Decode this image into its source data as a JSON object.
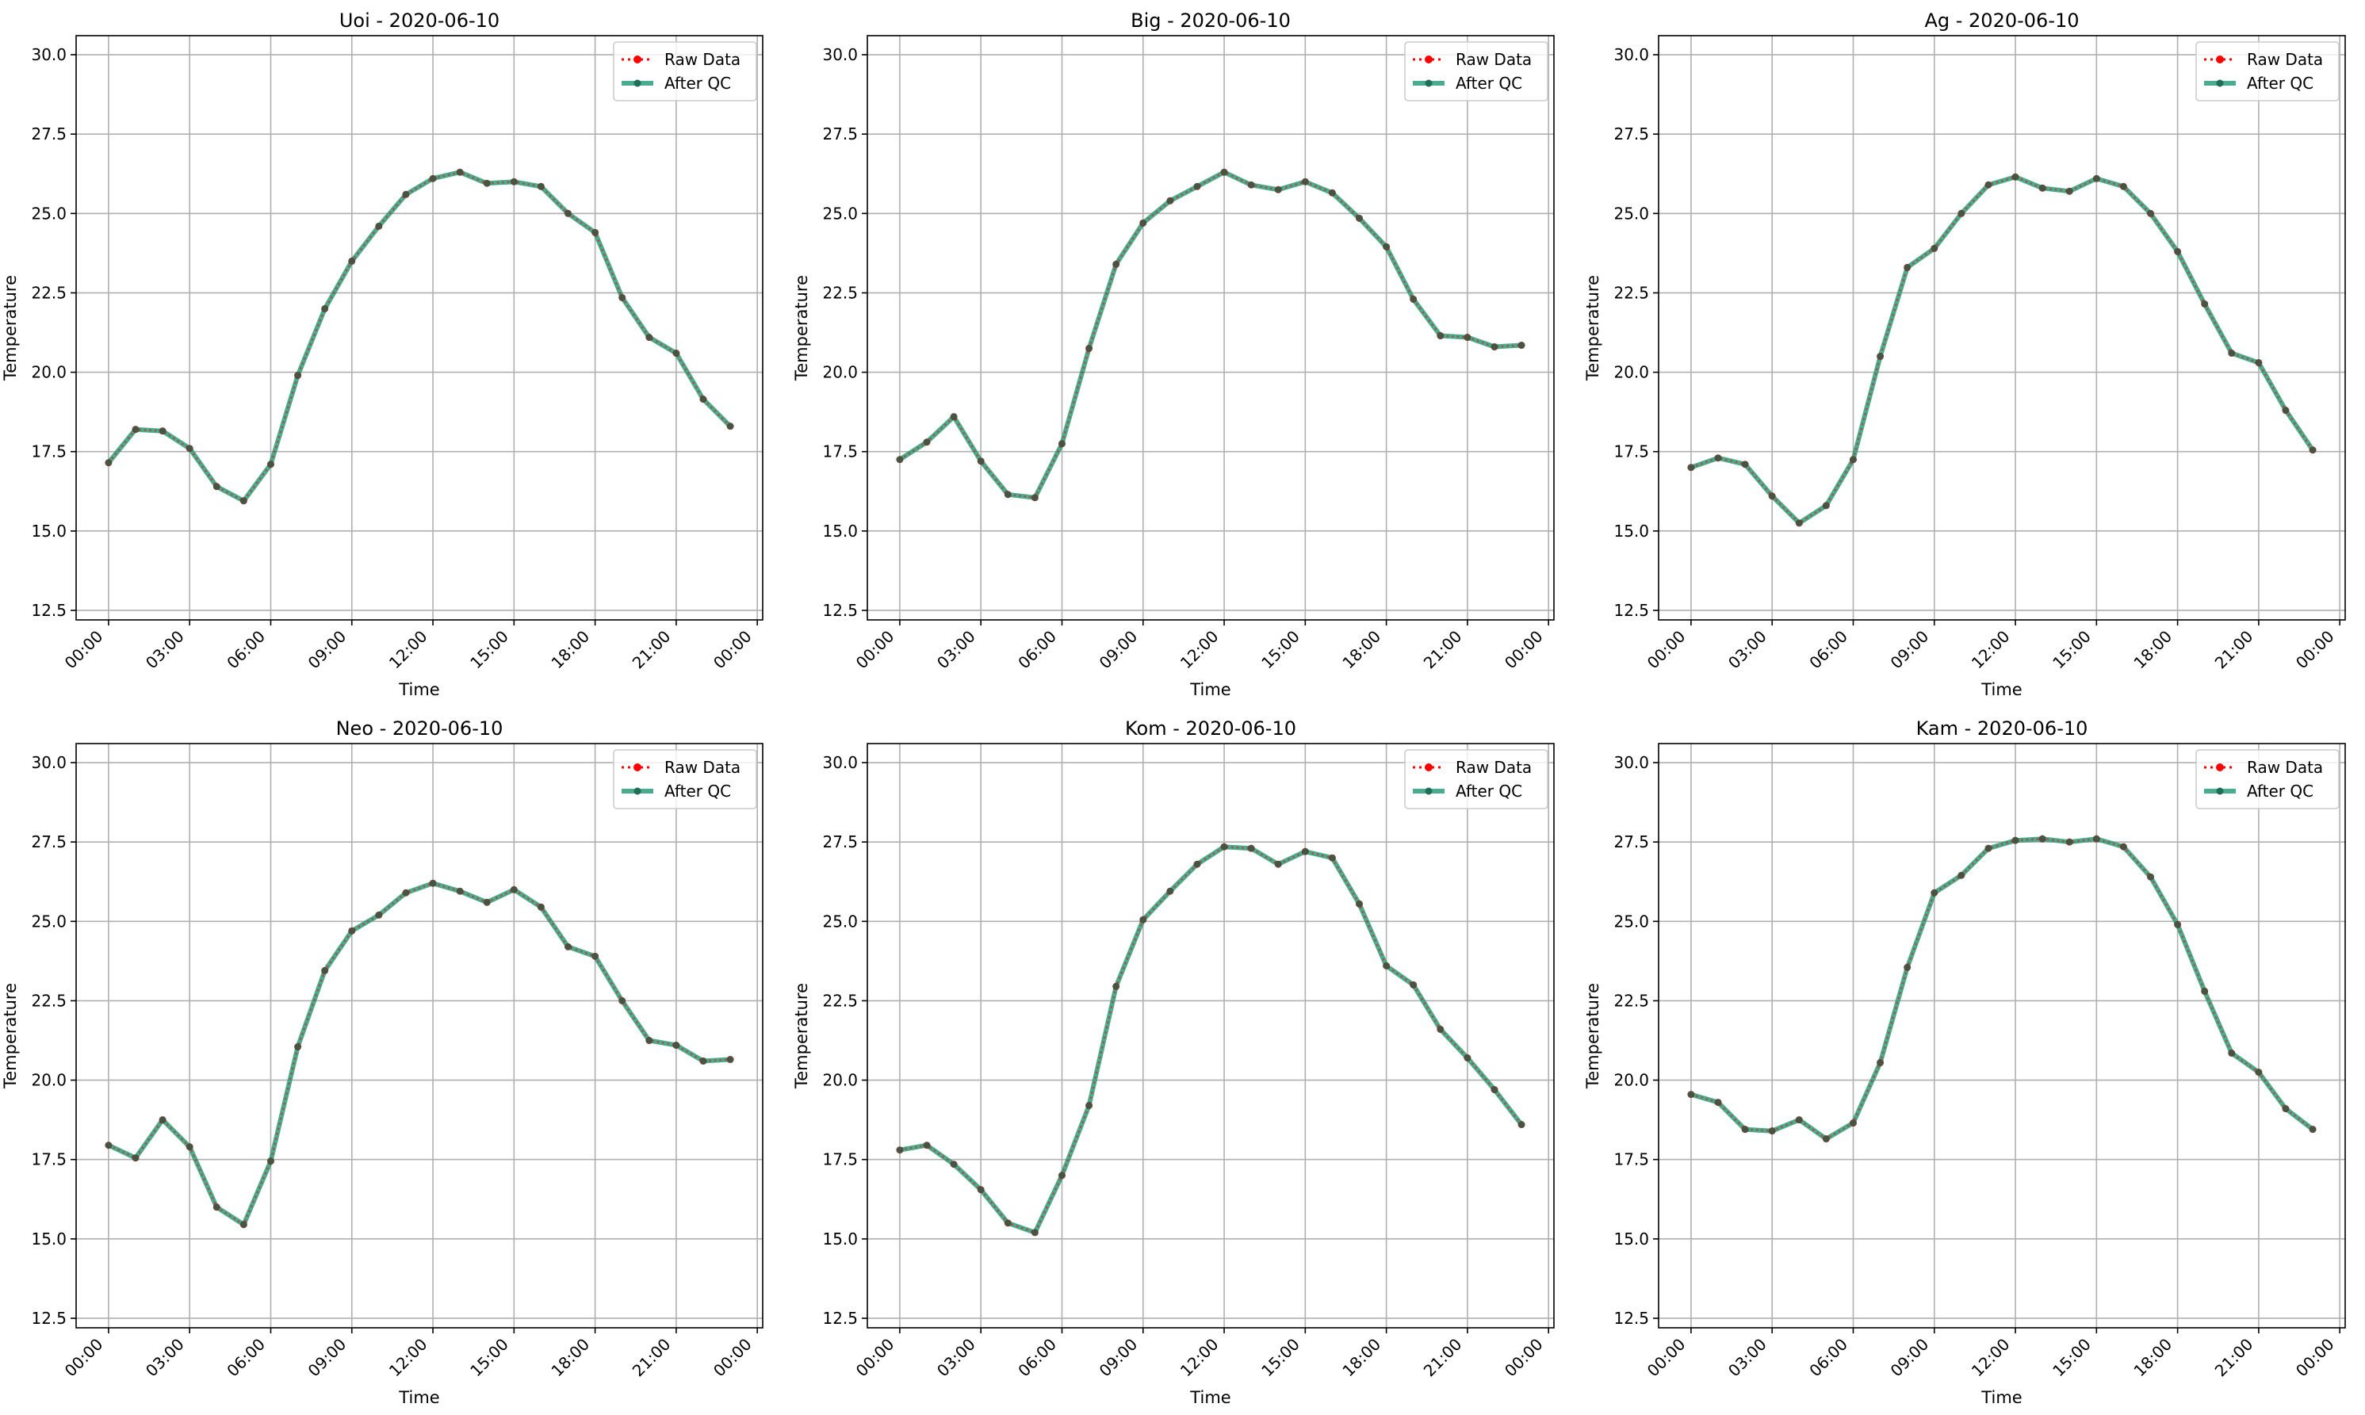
{
  "chart_data": [
    {
      "type": "line",
      "title": "Uoi - 2020-06-10",
      "xlabel": "Time",
      "ylabel": "Temperature",
      "ylim": [
        12.2,
        30.6
      ],
      "xlim": [
        "-1.2h",
        "24.2h"
      ],
      "x": [
        "00:00",
        "01:00",
        "02:00",
        "03:00",
        "04:00",
        "05:00",
        "06:00",
        "07:00",
        "08:00",
        "09:00",
        "10:00",
        "11:00",
        "12:00",
        "13:00",
        "14:00",
        "15:00",
        "16:00",
        "17:00",
        "18:00",
        "19:00",
        "20:00",
        "21:00",
        "22:00",
        "23:00"
      ],
      "x_ticks": [
        "00:00",
        "03:00",
        "06:00",
        "09:00",
        "12:00",
        "15:00",
        "18:00",
        "21:00",
        "00:00"
      ],
      "y_ticks": [
        "12.5",
        "15.0",
        "17.5",
        "20.0",
        "22.5",
        "25.0",
        "27.5",
        "30.0"
      ],
      "grid": true,
      "legend_position": "top-right",
      "series": [
        {
          "name": "Raw Data",
          "color": "#ff0000",
          "style": "dotted",
          "values": [
            17.15,
            18.2,
            18.15,
            17.6,
            16.4,
            15.95,
            17.1,
            19.9,
            22.0,
            23.5,
            24.6,
            25.6,
            26.1,
            26.3,
            25.95,
            26.0,
            25.85,
            25.0,
            24.4,
            22.35,
            21.1,
            20.6,
            19.15,
            18.3
          ]
        },
        {
          "name": "After QC",
          "color": "#2a9d7a",
          "style": "solid",
          "values": [
            17.15,
            18.2,
            18.15,
            17.6,
            16.4,
            15.95,
            17.1,
            19.9,
            22.0,
            23.5,
            24.6,
            25.6,
            26.1,
            26.3,
            25.95,
            26.0,
            25.85,
            25.0,
            24.4,
            22.35,
            21.1,
            20.6,
            19.15,
            18.3
          ]
        }
      ]
    },
    {
      "type": "line",
      "title": "Big - 2020-06-10",
      "xlabel": "Time",
      "ylabel": "Temperature",
      "ylim": [
        12.2,
        30.6
      ],
      "x": [
        "00:00",
        "01:00",
        "02:00",
        "03:00",
        "04:00",
        "05:00",
        "06:00",
        "07:00",
        "08:00",
        "09:00",
        "10:00",
        "11:00",
        "12:00",
        "13:00",
        "14:00",
        "15:00",
        "16:00",
        "17:00",
        "18:00",
        "19:00",
        "20:00",
        "21:00",
        "22:00",
        "23:00"
      ],
      "x_ticks": [
        "00:00",
        "03:00",
        "06:00",
        "09:00",
        "12:00",
        "15:00",
        "18:00",
        "21:00",
        "00:00"
      ],
      "y_ticks": [
        "12.5",
        "15.0",
        "17.5",
        "20.0",
        "22.5",
        "25.0",
        "27.5",
        "30.0"
      ],
      "grid": true,
      "legend_position": "top-right",
      "series": [
        {
          "name": "Raw Data",
          "color": "#ff0000",
          "style": "dotted",
          "values": [
            17.25,
            17.8,
            18.6,
            17.2,
            16.15,
            16.05,
            17.75,
            20.75,
            23.4,
            24.7,
            25.4,
            25.85,
            26.3,
            25.9,
            25.75,
            26.0,
            25.65,
            24.85,
            23.95,
            22.3,
            21.15,
            21.1,
            20.8,
            20.85
          ]
        },
        {
          "name": "After QC",
          "color": "#2a9d7a",
          "style": "solid",
          "values": [
            17.25,
            17.8,
            18.6,
            17.2,
            16.15,
            16.05,
            17.75,
            20.75,
            23.4,
            24.7,
            25.4,
            25.85,
            26.3,
            25.9,
            25.75,
            26.0,
            25.65,
            24.85,
            23.95,
            22.3,
            21.15,
            21.1,
            20.8,
            20.85
          ]
        }
      ]
    },
    {
      "type": "line",
      "title": "Ag - 2020-06-10",
      "xlabel": "Time",
      "ylabel": "Temperature",
      "ylim": [
        12.2,
        30.6
      ],
      "x": [
        "00:00",
        "01:00",
        "02:00",
        "03:00",
        "04:00",
        "05:00",
        "06:00",
        "07:00",
        "08:00",
        "09:00",
        "10:00",
        "11:00",
        "12:00",
        "13:00",
        "14:00",
        "15:00",
        "16:00",
        "17:00",
        "18:00",
        "19:00",
        "20:00",
        "21:00",
        "22:00",
        "23:00"
      ],
      "x_ticks": [
        "00:00",
        "03:00",
        "06:00",
        "09:00",
        "12:00",
        "15:00",
        "18:00",
        "21:00",
        "00:00"
      ],
      "y_ticks": [
        "12.5",
        "15.0",
        "17.5",
        "20.0",
        "22.5",
        "25.0",
        "27.5",
        "30.0"
      ],
      "grid": true,
      "legend_position": "top-right",
      "series": [
        {
          "name": "Raw Data",
          "color": "#ff0000",
          "style": "dotted",
          "values": [
            17.0,
            17.3,
            17.1,
            16.1,
            15.25,
            15.8,
            17.25,
            20.5,
            23.3,
            23.9,
            25.0,
            25.9,
            26.15,
            25.8,
            25.7,
            26.1,
            25.85,
            25.0,
            23.8,
            22.15,
            20.6,
            20.3,
            18.8,
            17.55
          ]
        },
        {
          "name": "After QC",
          "color": "#2a9d7a",
          "style": "solid",
          "values": [
            17.0,
            17.3,
            17.1,
            16.1,
            15.25,
            15.8,
            17.25,
            20.5,
            23.3,
            23.9,
            25.0,
            25.9,
            26.15,
            25.8,
            25.7,
            26.1,
            25.85,
            25.0,
            23.8,
            22.15,
            20.6,
            20.3,
            18.8,
            17.55
          ]
        }
      ]
    },
    {
      "type": "line",
      "title": "Neo - 2020-06-10",
      "xlabel": "Time",
      "ylabel": "Temperature",
      "ylim": [
        12.2,
        30.6
      ],
      "x": [
        "00:00",
        "01:00",
        "02:00",
        "03:00",
        "04:00",
        "05:00",
        "06:00",
        "07:00",
        "08:00",
        "09:00",
        "10:00",
        "11:00",
        "12:00",
        "13:00",
        "14:00",
        "15:00",
        "16:00",
        "17:00",
        "18:00",
        "19:00",
        "20:00",
        "21:00",
        "22:00",
        "23:00"
      ],
      "x_ticks": [
        "00:00",
        "03:00",
        "06:00",
        "09:00",
        "12:00",
        "15:00",
        "18:00",
        "21:00",
        "00:00"
      ],
      "y_ticks": [
        "12.5",
        "15.0",
        "17.5",
        "20.0",
        "22.5",
        "25.0",
        "27.5",
        "30.0"
      ],
      "grid": true,
      "legend_position": "top-right",
      "series": [
        {
          "name": "Raw Data",
          "color": "#ff0000",
          "style": "dotted",
          "values": [
            17.95,
            17.55,
            18.75,
            17.9,
            16.0,
            15.45,
            17.45,
            21.05,
            23.45,
            24.7,
            25.2,
            25.9,
            26.2,
            25.95,
            25.6,
            26.0,
            25.45,
            24.2,
            23.9,
            22.5,
            21.25,
            21.1,
            20.6,
            20.65
          ]
        },
        {
          "name": "After QC",
          "color": "#2a9d7a",
          "style": "solid",
          "values": [
            17.95,
            17.55,
            18.75,
            17.9,
            16.0,
            15.45,
            17.45,
            21.05,
            23.45,
            24.7,
            25.2,
            25.9,
            26.2,
            25.95,
            25.6,
            26.0,
            25.45,
            24.2,
            23.9,
            22.5,
            21.25,
            21.1,
            20.6,
            20.65
          ]
        }
      ]
    },
    {
      "type": "line",
      "title": "Kom - 2020-06-10",
      "xlabel": "Time",
      "ylabel": "Temperature",
      "ylim": [
        12.2,
        30.6
      ],
      "x": [
        "00:00",
        "01:00",
        "02:00",
        "03:00",
        "04:00",
        "05:00",
        "06:00",
        "07:00",
        "08:00",
        "09:00",
        "10:00",
        "11:00",
        "12:00",
        "13:00",
        "14:00",
        "15:00",
        "16:00",
        "17:00",
        "18:00",
        "19:00",
        "20:00",
        "21:00",
        "22:00",
        "23:00"
      ],
      "x_ticks": [
        "00:00",
        "03:00",
        "06:00",
        "09:00",
        "12:00",
        "15:00",
        "18:00",
        "21:00",
        "00:00"
      ],
      "y_ticks": [
        "12.5",
        "15.0",
        "17.5",
        "20.0",
        "22.5",
        "25.0",
        "27.5",
        "30.0"
      ],
      "grid": true,
      "legend_position": "top-right",
      "series": [
        {
          "name": "Raw Data",
          "color": "#ff0000",
          "style": "dotted",
          "values": [
            17.8,
            17.95,
            17.35,
            16.55,
            15.5,
            15.2,
            17.0,
            19.2,
            22.95,
            25.05,
            25.95,
            26.8,
            27.35,
            27.3,
            26.8,
            27.2,
            27.0,
            25.55,
            23.6,
            23.0,
            21.6,
            20.7,
            19.7,
            18.6
          ]
        },
        {
          "name": "After QC",
          "color": "#2a9d7a",
          "style": "solid",
          "values": [
            17.8,
            17.95,
            17.35,
            16.55,
            15.5,
            15.2,
            17.0,
            19.2,
            22.95,
            25.05,
            25.95,
            26.8,
            27.35,
            27.3,
            26.8,
            27.2,
            27.0,
            25.55,
            23.6,
            23.0,
            21.6,
            20.7,
            19.7,
            18.6
          ]
        }
      ]
    },
    {
      "type": "line",
      "title": "Kam - 2020-06-10",
      "xlabel": "Time",
      "ylabel": "Temperature",
      "ylim": [
        12.2,
        30.6
      ],
      "x": [
        "00:00",
        "01:00",
        "02:00",
        "03:00",
        "04:00",
        "05:00",
        "06:00",
        "07:00",
        "08:00",
        "09:00",
        "10:00",
        "11:00",
        "12:00",
        "13:00",
        "14:00",
        "15:00",
        "16:00",
        "17:00",
        "18:00",
        "19:00",
        "20:00",
        "21:00",
        "22:00",
        "23:00"
      ],
      "x_ticks": [
        "00:00",
        "03:00",
        "06:00",
        "09:00",
        "12:00",
        "15:00",
        "18:00",
        "21:00",
        "00:00"
      ],
      "y_ticks": [
        "12.5",
        "15.0",
        "17.5",
        "20.0",
        "22.5",
        "25.0",
        "27.5",
        "30.0"
      ],
      "grid": true,
      "legend_position": "top-right",
      "series": [
        {
          "name": "Raw Data",
          "color": "#ff0000",
          "style": "dotted",
          "values": [
            19.55,
            19.3,
            18.45,
            18.4,
            18.75,
            18.15,
            18.65,
            20.55,
            23.55,
            25.9,
            26.45,
            27.3,
            27.55,
            27.6,
            27.5,
            27.6,
            27.35,
            26.4,
            24.9,
            22.8,
            20.85,
            20.25,
            19.1,
            18.45
          ]
        },
        {
          "name": "After QC",
          "color": "#2a9d7a",
          "style": "solid",
          "values": [
            19.55,
            19.3,
            18.45,
            18.4,
            18.75,
            18.15,
            18.65,
            20.55,
            23.55,
            25.9,
            26.45,
            27.3,
            27.55,
            27.6,
            27.5,
            27.6,
            27.35,
            26.4,
            24.9,
            22.8,
            20.85,
            20.25,
            19.1,
            18.45
          ]
        }
      ]
    }
  ]
}
